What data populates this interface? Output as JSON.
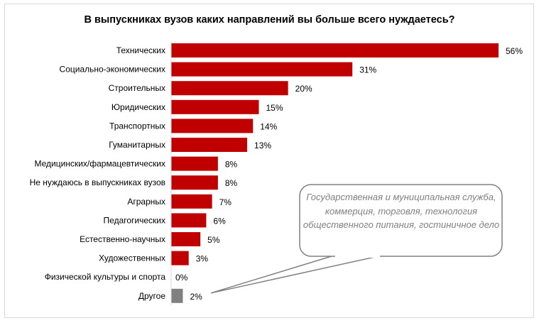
{
  "chart_data": {
    "type": "bar",
    "orientation": "horizontal",
    "title": "В выпускниках вузов каких направлений вы больше всего нуждаетесь?",
    "categories": [
      "Технических",
      "Социально-экономических",
      "Строительных",
      "Юридических",
      "Транспортных",
      "Гуманитарных",
      "Медицинских/фармацевтических",
      "Не нуждаюсь в выпускниках вузов",
      "Аграрных",
      "Педагогических",
      "Естественно-научных",
      "Художественных",
      "Физической культуры и спорта",
      "Другое"
    ],
    "values": [
      56,
      31,
      20,
      15,
      14,
      13,
      8,
      8,
      7,
      6,
      5,
      3,
      0,
      2
    ],
    "data_labels": [
      "56%",
      "31%",
      "20%",
      "15%",
      "14%",
      "13%",
      "8%",
      "8%",
      "7%",
      "6%",
      "5%",
      "3%",
      "0%",
      "2%"
    ],
    "unit": "%",
    "xlim": [
      0,
      56
    ],
    "grid": false,
    "legend": "none",
    "colors": {
      "main": "#c00000",
      "other": "#808080"
    },
    "annotation": {
      "text": "Государственная и муниципальная служба, коммерция, торговля, технология общественного питания, гостиничное дело",
      "target": "Другое"
    }
  }
}
